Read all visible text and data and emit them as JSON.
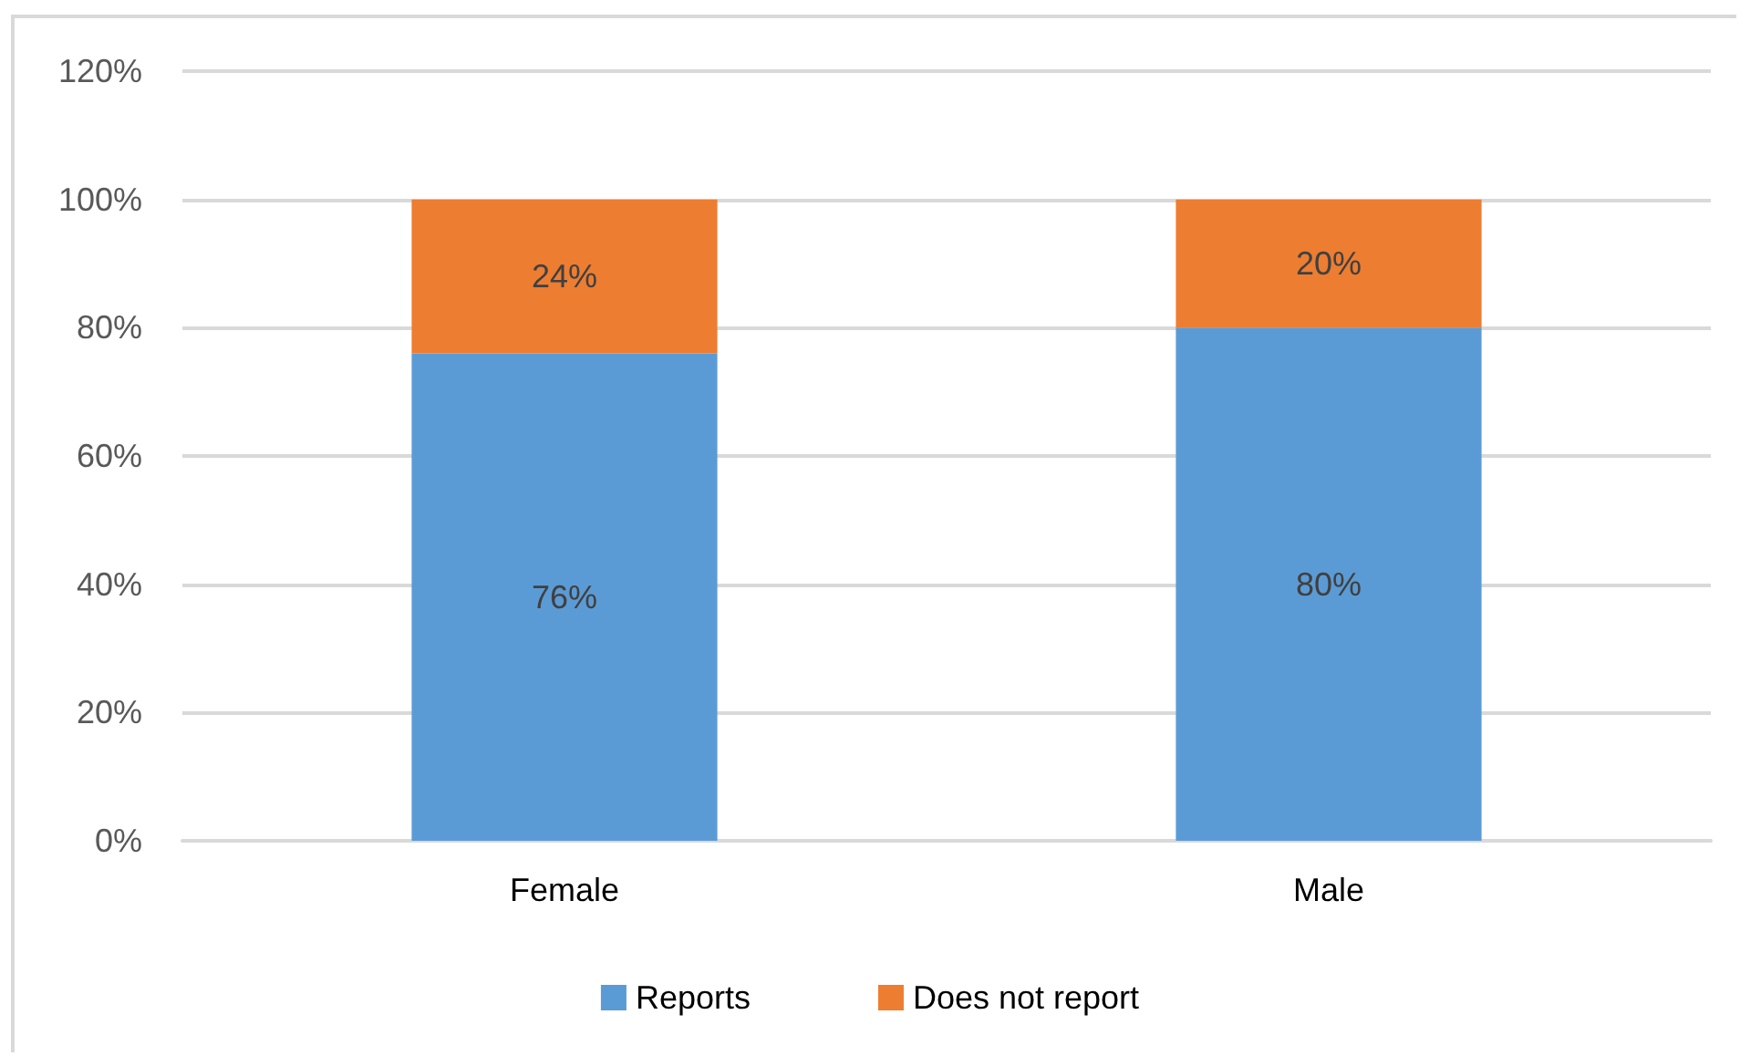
{
  "chart_data": {
    "type": "bar",
    "stacked": true,
    "categories": [
      "Female",
      "Male"
    ],
    "series": [
      {
        "name": "Reports",
        "color": "#5b9bd5",
        "values": [
          76,
          80
        ],
        "value_labels": [
          "76%",
          "80%"
        ]
      },
      {
        "name": "Does not report",
        "color": "#ed7d31",
        "values": [
          24,
          20
        ],
        "value_labels": [
          "24%",
          "20%"
        ]
      }
    ],
    "ylim": [
      0,
      120
    ],
    "yticks": [
      {
        "value": 0,
        "label": "0%"
      },
      {
        "value": 20,
        "label": "20%"
      },
      {
        "value": 40,
        "label": "40%"
      },
      {
        "value": 60,
        "label": "60%"
      },
      {
        "value": 80,
        "label": "80%"
      },
      {
        "value": 100,
        "label": "100%"
      },
      {
        "value": 120,
        "label": "120%"
      }
    ],
    "grid": true,
    "legend": "bottom"
  }
}
